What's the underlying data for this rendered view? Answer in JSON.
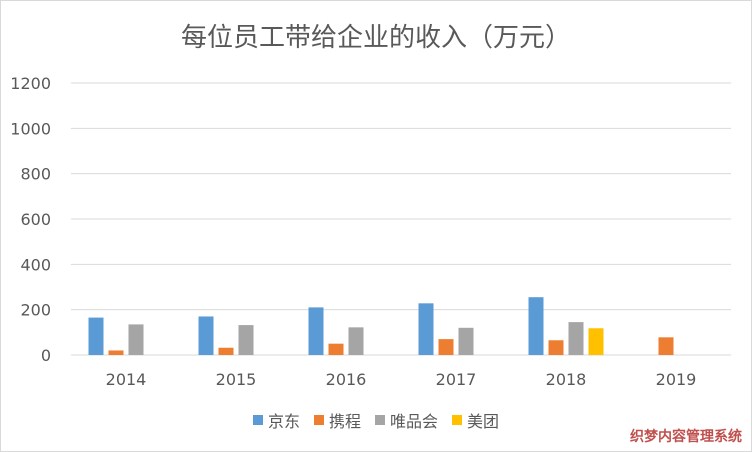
{
  "chart_data": {
    "type": "bar",
    "title": "每位员工带给企业的收入（万元）",
    "xlabel": "",
    "ylabel": "",
    "ylim": [
      0,
      1200
    ],
    "yticks": [
      0,
      200,
      400,
      600,
      800,
      1000,
      1200
    ],
    "grid": true,
    "legend_position": "bottom",
    "categories": [
      "2014",
      "2015",
      "2016",
      "2017",
      "2018",
      "2019"
    ],
    "series": [
      {
        "name": "京东",
        "color": "#5b9bd5",
        "values": [
          165,
          170,
          210,
          228,
          255,
          null
        ]
      },
      {
        "name": "携程",
        "color": "#ed7d31",
        "values": [
          20,
          32,
          50,
          70,
          65,
          78
        ]
      },
      {
        "name": "唯品会",
        "color": "#a5a5a5",
        "values": [
          135,
          132,
          122,
          120,
          145,
          null
        ]
      },
      {
        "name": "美团",
        "color": "#ffc000",
        "values": [
          null,
          null,
          null,
          null,
          118,
          null
        ]
      }
    ]
  },
  "watermark": "织梦内容管理系统"
}
